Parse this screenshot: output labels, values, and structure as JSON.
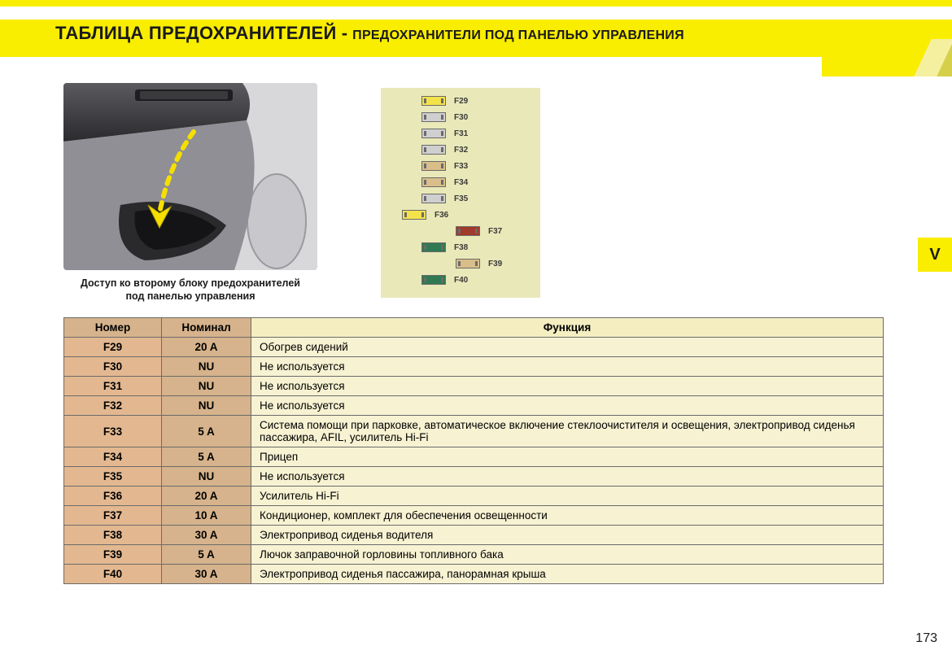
{
  "colors": {
    "brand_yellow": "#f9ed00",
    "header_text": "#1a1a1a",
    "table_border": "#6b6b6b",
    "th_num_bg": "#d6b38c",
    "th_func_bg": "#f4eec1",
    "td_num_bg": "#e3b890",
    "td_nom_bg": "#d6b38c",
    "td_func_bg": "#f7f2d2",
    "fusemap_bg": "#e9e8b8"
  },
  "header": {
    "title_big": "ТАБЛИЦА ПРЕДОХРАНИТЕЛЕЙ",
    "sep": " - ",
    "title_small": "ПРЕДОХРАНИТЕЛИ ПОД ПАНЕЛЬЮ УПРАВЛЕНИЯ"
  },
  "side_tab": "V",
  "caption_line1": "Доступ ко второму блоку предохранителей",
  "caption_line2": "под панелью управления",
  "fusemap": {
    "rows": [
      {
        "label": "F29",
        "color": "#f4e24a",
        "indent": 42
      },
      {
        "label": "F30",
        "color": "#cfcfcf",
        "indent": 42
      },
      {
        "label": "F31",
        "color": "#cfcfcf",
        "indent": 42
      },
      {
        "label": "F32",
        "color": "#cfcfcf",
        "indent": 42
      },
      {
        "label": "F33",
        "color": "#d9be8a",
        "indent": 42
      },
      {
        "label": "F34",
        "color": "#d9be8a",
        "indent": 42
      },
      {
        "label": "F35",
        "color": "#cfcfcf",
        "indent": 42
      },
      {
        "label": "F36",
        "color": "#f4e24a",
        "indent": 18
      },
      {
        "label": "F37",
        "color": "#a03a2a",
        "indent": 84
      },
      {
        "label": "F38",
        "color": "#2f7a52",
        "indent": 42
      },
      {
        "label": "F39",
        "color": "#d9be8a",
        "indent": 84
      },
      {
        "label": "F40",
        "color": "#2f7a52",
        "indent": 42
      }
    ]
  },
  "table": {
    "headers": {
      "num": "Номер",
      "nom": "Номинал",
      "func": "Функция"
    },
    "rows": [
      {
        "num": "F29",
        "nom": "20 A",
        "func": "Обогрев сидений"
      },
      {
        "num": "F30",
        "nom": "NU",
        "func": "Не используется"
      },
      {
        "num": "F31",
        "nom": "NU",
        "func": "Не используется"
      },
      {
        "num": "F32",
        "nom": "NU",
        "func": "Не используется"
      },
      {
        "num": "F33",
        "nom": "5 A",
        "func": "Система помощи при парковке, автоматическое включение стеклоочистителя и освещения, электропривод сиденья пассажира, AFIL, усилитель Hi-Fi"
      },
      {
        "num": "F34",
        "nom": "5 A",
        "func": "Прицеп"
      },
      {
        "num": "F35",
        "nom": "NU",
        "func": "Не используется"
      },
      {
        "num": "F36",
        "nom": "20 A",
        "func": "Усилитель Hi-Fi"
      },
      {
        "num": "F37",
        "nom": "10 A",
        "func": "Кондиционер, комплект для обеспечения освещенности"
      },
      {
        "num": "F38",
        "nom": "30 A",
        "func": "Электропривод сиденья водителя"
      },
      {
        "num": "F39",
        "nom": "5 A",
        "func": "Лючок заправочной горловины топливного бака"
      },
      {
        "num": "F40",
        "nom": "30 A",
        "func": "Электропривод сиденья пассажира, панорамная крыша"
      }
    ]
  },
  "page_number": "173"
}
